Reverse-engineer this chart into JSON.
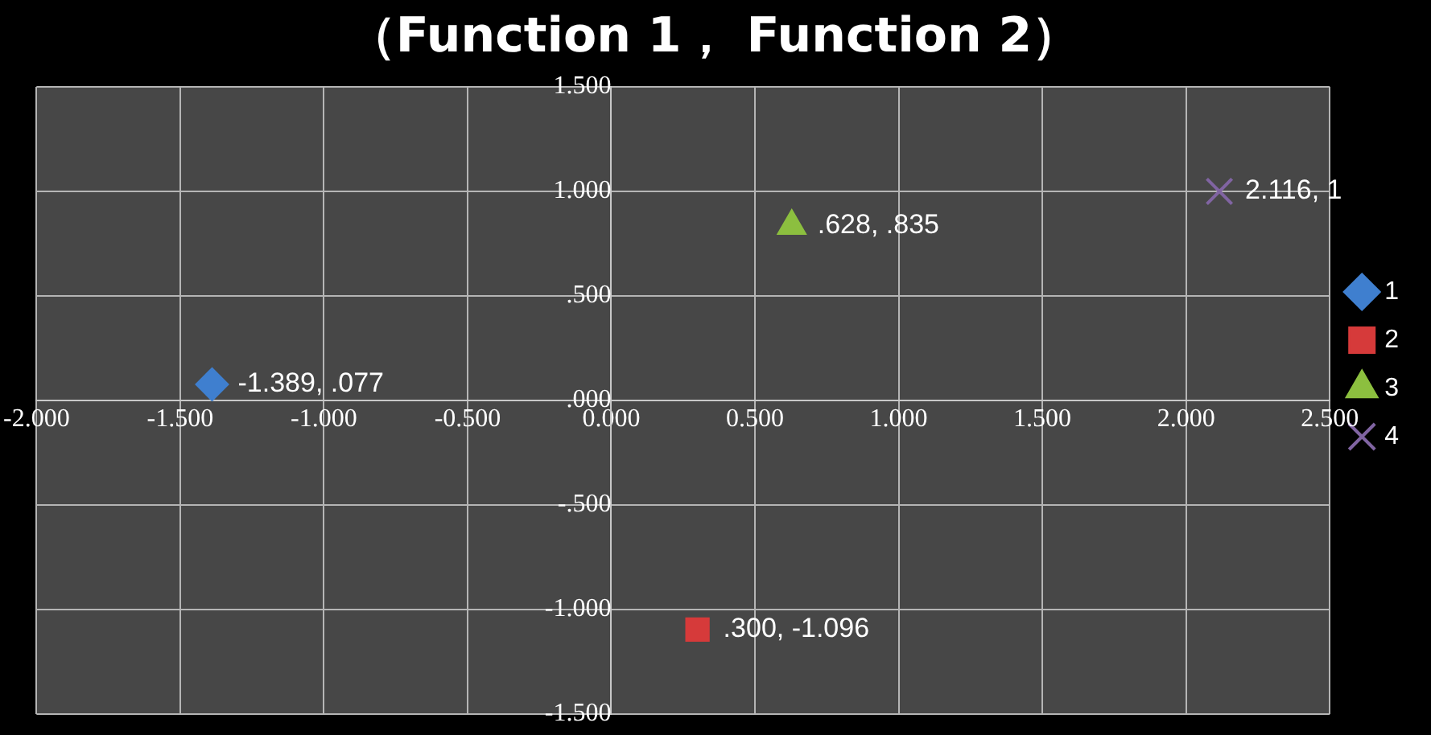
{
  "chart_data": {
    "type": "scatter",
    "title": "（Function 1， Function 2）",
    "xlim": [
      -2,
      2.5
    ],
    "xticks": [
      {
        "value": -2,
        "label": "-2.000"
      },
      {
        "value": -1.5,
        "label": "-1.500"
      },
      {
        "value": -1,
        "label": "-1.000"
      },
      {
        "value": -0.5,
        "label": "-0.500"
      },
      {
        "value": 0,
        "label": "0.000"
      },
      {
        "value": 0.5,
        "label": "0.500"
      },
      {
        "value": 1,
        "label": "1.000"
      },
      {
        "value": 1.5,
        "label": "1.500"
      },
      {
        "value": 2,
        "label": "2.000"
      },
      {
        "value": 2.5,
        "label": "2.500"
      }
    ],
    "ylim": [
      -1.5,
      1.5
    ],
    "yticks": [
      {
        "value": -1.5,
        "label": "-1.500"
      },
      {
        "value": -1,
        "label": "-1.000"
      },
      {
        "value": -0.5,
        "label": "-.500"
      },
      {
        "value": 0,
        "label": ".000"
      },
      {
        "value": 0.5,
        "label": ".500"
      },
      {
        "value": 1,
        "label": "1.000"
      },
      {
        "value": 1.5,
        "label": "1.500"
      }
    ],
    "grid": true,
    "legend": "right",
    "series": [
      {
        "name": "1",
        "color": "#3f7fcf",
        "marker": "diamond",
        "x": [
          -1.389
        ],
        "values": [
          0.077
        ],
        "value_labels": [
          "-1.389, .077"
        ]
      },
      {
        "name": "2",
        "color": "#d63a3a",
        "marker": "square",
        "x": [
          0.3
        ],
        "values": [
          -1.096
        ],
        "value_labels": [
          ".300, -1.096"
        ]
      },
      {
        "name": "3",
        "color": "#8cbf3f",
        "marker": "triangle",
        "x": [
          0.628
        ],
        "values": [
          0.835
        ],
        "value_labels": [
          ".628, .835"
        ]
      },
      {
        "name": "4",
        "color": "#8064a2",
        "marker": "cross",
        "x": [
          2.116
        ],
        "values": [
          1
        ],
        "value_labels": [
          "2.116, 1"
        ]
      }
    ]
  }
}
